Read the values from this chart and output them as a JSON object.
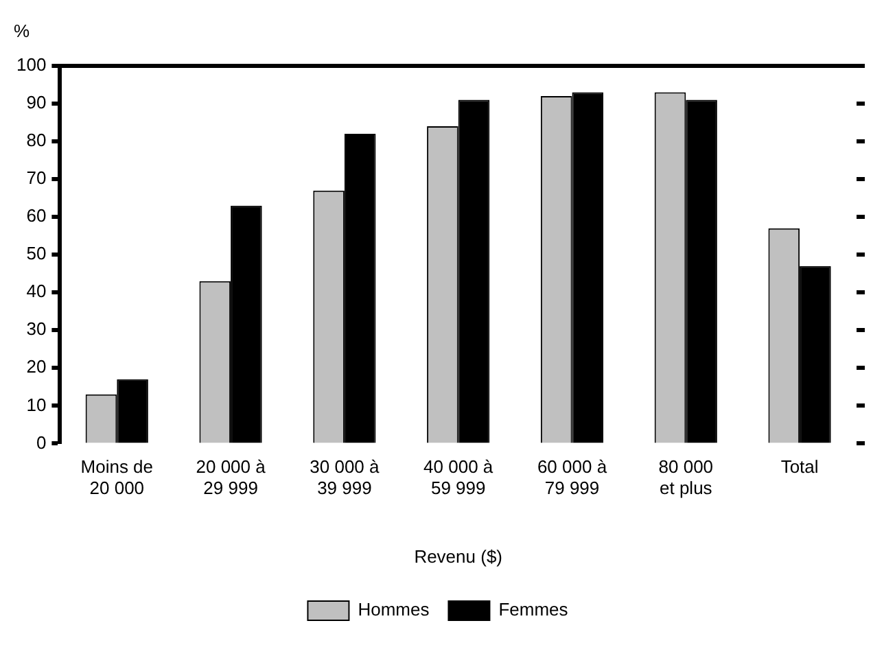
{
  "chart_data": {
    "type": "bar",
    "ylabel": "%",
    "xlabel": "Revenu ($)",
    "categories": [
      "Moins de\n20 000",
      "20 000 à\n29 999",
      "30 000 à\n39 999",
      "40 000 à\n59 999",
      "60 000 à\n79 999",
      "80 000\net plus",
      "Total"
    ],
    "series": [
      {
        "name": "Hommes",
        "color": "#c0c0c0",
        "values": [
          13,
          43,
          67,
          84,
          92,
          93,
          57
        ]
      },
      {
        "name": "Femmes",
        "color": "#000000",
        "values": [
          17,
          63,
          82,
          91,
          93,
          91,
          47
        ]
      }
    ],
    "ylim": [
      0,
      100
    ],
    "yticks": [
      0,
      10,
      20,
      30,
      40,
      50,
      60,
      70,
      80,
      90,
      100
    ],
    "grid": false,
    "legend": "bottom"
  }
}
